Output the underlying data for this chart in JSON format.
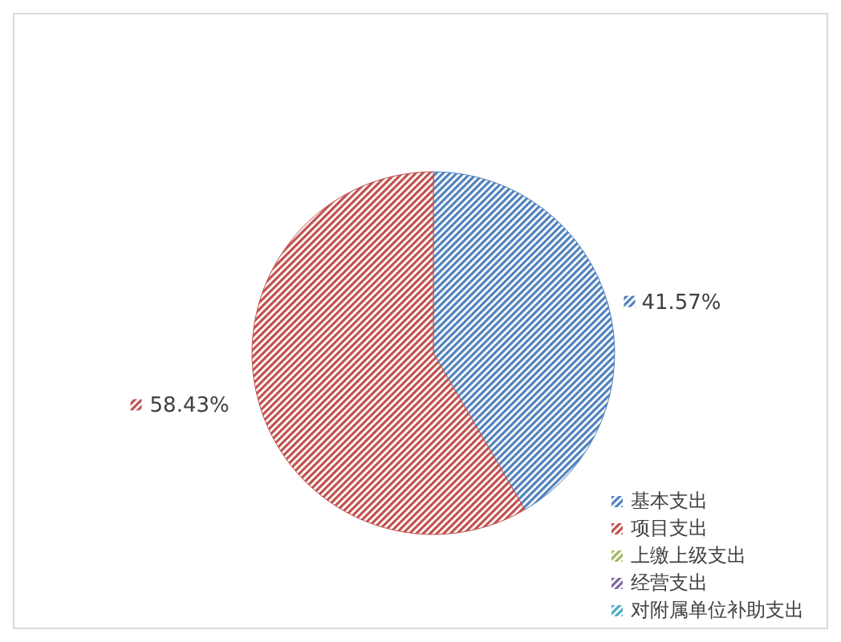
{
  "chart_data": {
    "type": "pie",
    "categories": [
      "基本支出",
      "项目支出",
      "上缴上级支出",
      "经营支出",
      "对附属单位补助支出"
    ],
    "values": [
      41.57,
      58.43,
      0,
      0,
      0
    ],
    "colors": [
      "#4f81bd",
      "#c0504d",
      "#9bbb59",
      "#8064a2",
      "#4bacc6"
    ],
    "value_labels": [
      "41.57%",
      "58.43%",
      null,
      null,
      null
    ],
    "legend": "bottom right"
  }
}
